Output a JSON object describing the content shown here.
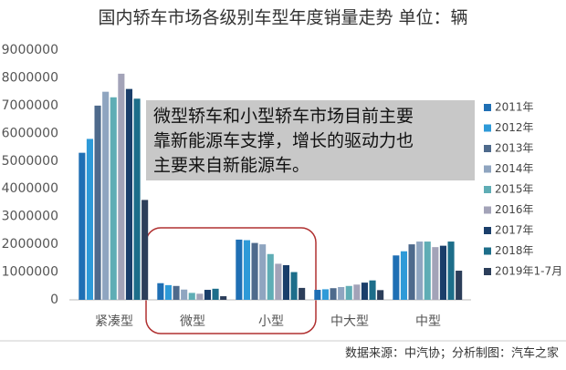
{
  "chart_data": {
    "type": "bar",
    "title": "国内轿车市场各级别车型年度销量走势  单位：辆",
    "annotation": [
      "微型轿车和小型轿车市场目前主要",
      "靠新能源车支撑，增长的驱动力也",
      "主要来自新能源车。"
    ],
    "source": "数据来源：中汽协；分析制图：汽车之家",
    "categories": [
      "紧凑型",
      "微型",
      "小型",
      "中大型",
      "中型"
    ],
    "ylim": [
      0,
      9000000
    ],
    "yticks": [
      0,
      1000000,
      2000000,
      3000000,
      4000000,
      5000000,
      6000000,
      7000000,
      8000000,
      9000000
    ],
    "grid": false,
    "legend": "right",
    "series": [
      {
        "name": "2011年",
        "color": "#1f6fb4",
        "values": [
          5300000,
          600000,
          2170000,
          360000,
          1600000
        ]
      },
      {
        "name": "2012年",
        "color": "#2e9ad8",
        "values": [
          5800000,
          530000,
          2150000,
          380000,
          1750000
        ]
      },
      {
        "name": "2013年",
        "color": "#4e6a8c",
        "values": [
          7000000,
          500000,
          2050000,
          420000,
          2000000
        ]
      },
      {
        "name": "2014年",
        "color": "#8fa5c0",
        "values": [
          7500000,
          370000,
          2000000,
          460000,
          2100000
        ]
      },
      {
        "name": "2015年",
        "color": "#5fadb5",
        "values": [
          7300000,
          250000,
          1650000,
          500000,
          2100000
        ]
      },
      {
        "name": "2016年",
        "color": "#a3a3b8",
        "values": [
          8150000,
          220000,
          1300000,
          550000,
          1900000
        ]
      },
      {
        "name": "2017年",
        "color": "#1a3e6a",
        "values": [
          7600000,
          360000,
          1250000,
          620000,
          1950000
        ]
      },
      {
        "name": "2018年",
        "color": "#1d6e8a",
        "values": [
          7250000,
          400000,
          1000000,
          700000,
          2100000
        ]
      },
      {
        "name": "2019年1-7月",
        "color": "#2c3e5a",
        "values": [
          3600000,
          130000,
          430000,
          350000,
          1050000
        ]
      }
    ]
  }
}
